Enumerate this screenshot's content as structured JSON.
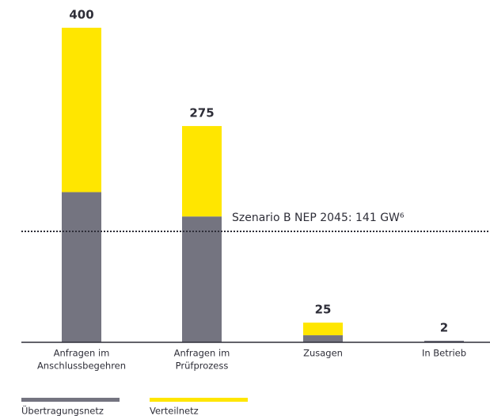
{
  "chart_data": {
    "type": "stacked_bar",
    "categories": [
      [
        "Anfragen im",
        "Anschlussbegehren"
      ],
      [
        "Anfragen im",
        "Prüfprozess"
      ],
      [
        "Zusagen"
      ],
      [
        "In Betrieb"
      ]
    ],
    "series": [
      {
        "name": "Übertragungsnetz",
        "color": "#747480",
        "values": [
          191,
          160,
          9,
          2
        ]
      },
      {
        "name": "Verteilnetz",
        "color": "#ffe600",
        "values": [
          209,
          115,
          16,
          0
        ]
      }
    ],
    "totals": [
      400,
      275,
      25,
      2
    ],
    "reference_line": {
      "value": 141,
      "label": "Szenario B NEP 2045: 141 GW⁶"
    },
    "legend": "bottom-left"
  }
}
